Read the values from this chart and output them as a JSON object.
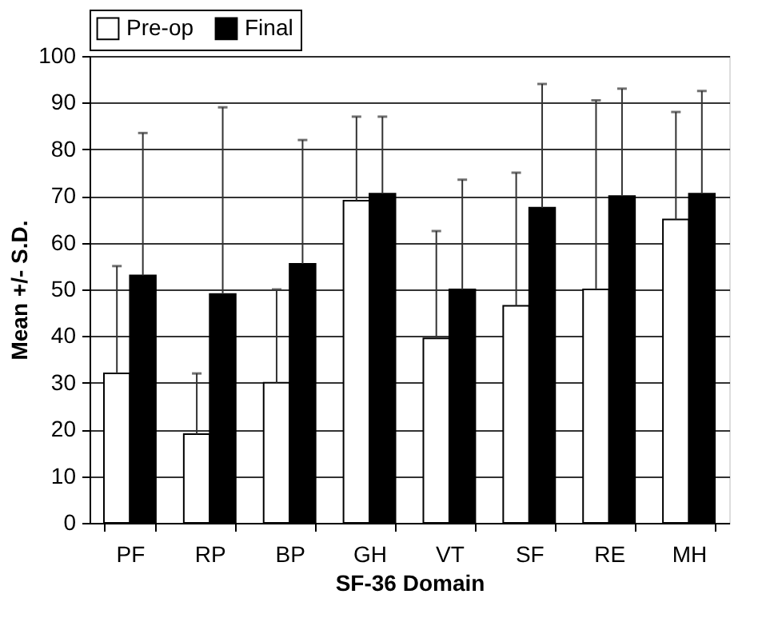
{
  "chart_data": {
    "type": "bar",
    "xlabel": "SF-36 Domain",
    "ylabel": "Mean +/- S.D.",
    "categories": [
      "PF",
      "RP",
      "BP",
      "GH",
      "VT",
      "SF",
      "RE",
      "MH"
    ],
    "series": [
      {
        "name": "Pre-op",
        "color": "#ffffff",
        "values": [
          32,
          19,
          30,
          69,
          39.5,
          46.5,
          50,
          65
        ],
        "errors": [
          [
            32,
            55
          ],
          [
            19,
            32
          ],
          [
            30,
            50
          ],
          [
            69,
            87
          ],
          [
            39.5,
            62.5
          ],
          [
            46.5,
            75
          ],
          [
            50,
            90.5
          ],
          [
            65,
            88
          ]
        ]
      },
      {
        "name": "Final",
        "color": "#000000",
        "values": [
          53,
          49,
          55.5,
          70.5,
          50,
          67.5,
          70,
          70.5
        ],
        "errors": [
          [
            53,
            83.5
          ],
          [
            49,
            89
          ],
          [
            55.5,
            82
          ],
          [
            70.5,
            87
          ],
          [
            50,
            73.5
          ],
          [
            67.5,
            94
          ],
          [
            70,
            93
          ],
          [
            70.5,
            92.5
          ]
        ]
      }
    ],
    "ylim": [
      0,
      100
    ],
    "yticks": [
      0,
      10,
      20,
      30,
      40,
      50,
      60,
      70,
      80,
      90,
      100
    ],
    "grid": "y",
    "legend": "top"
  }
}
